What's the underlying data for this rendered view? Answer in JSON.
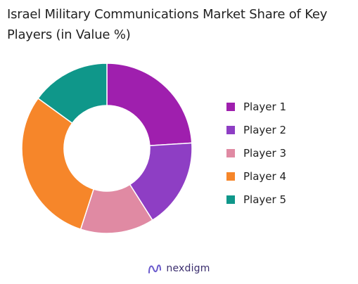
{
  "chart_data": {
    "type": "pie",
    "title": "Israel Military Communications Market Share of Key Players (in Value %)",
    "categories": [
      "Player 1",
      "Player 2",
      "Player 3",
      "Player 4",
      "Player 5"
    ],
    "values": [
      24,
      17,
      14,
      30,
      15
    ],
    "colors": [
      "#9f1fae",
      "#8e3ec4",
      "#e08aa3",
      "#f6862a",
      "#0f978a"
    ],
    "legend_position": "right"
  },
  "brand": {
    "name": "nexdigm",
    "icon": "nexdigm-logo-icon",
    "color": "#3b2e6e"
  }
}
